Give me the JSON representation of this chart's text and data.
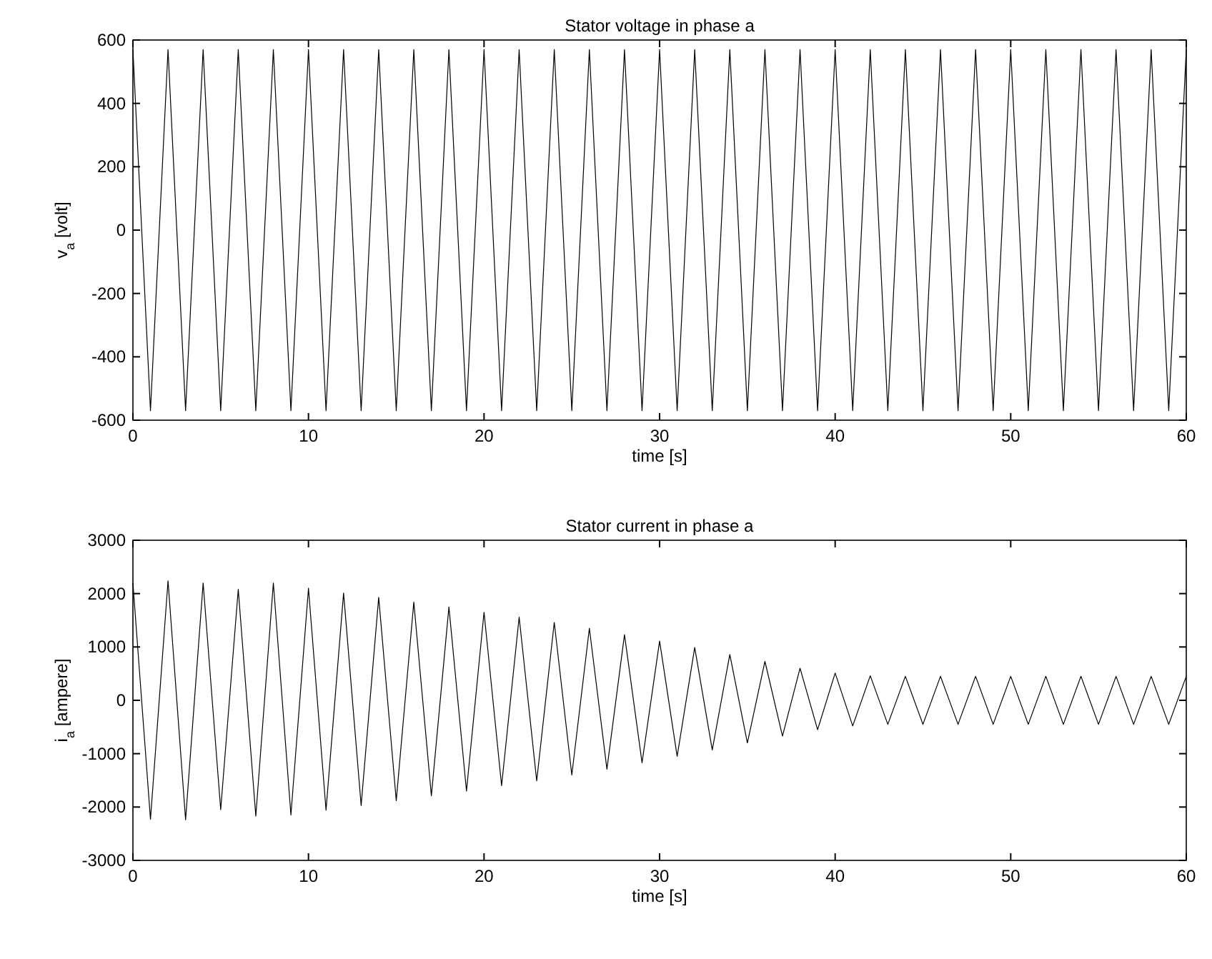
{
  "chart_data": [
    {
      "type": "line",
      "title": "Stator voltage in phase a",
      "xlabel": "time [s]",
      "ylabel": "v$_{a}$ [volt]",
      "xlim": [
        0,
        60
      ],
      "xticks": [
        0,
        10,
        20,
        30,
        40,
        50,
        60
      ],
      "ylim": [
        -600,
        600
      ],
      "yticks": [
        -600,
        -400,
        -200,
        0,
        200,
        400,
        600
      ],
      "series": [
        {
          "color": "#000000",
          "x": [
            0,
            1,
            2,
            3,
            4,
            5,
            6,
            7,
            8,
            9,
            10,
            11,
            12,
            13,
            14,
            15,
            16,
            17,
            18,
            19,
            20,
            21,
            22,
            23,
            24,
            25,
            26,
            27,
            28,
            29,
            30,
            31,
            32,
            33,
            34,
            35,
            36,
            37,
            38,
            39,
            40,
            41,
            42,
            43,
            44,
            45,
            46,
            47,
            48,
            49,
            50,
            51,
            52,
            53,
            54,
            55,
            56,
            57,
            58,
            59,
            60
          ],
          "values": [
            570,
            -570,
            570,
            -570,
            570,
            -570,
            570,
            -570,
            570,
            -570,
            570,
            -570,
            570,
            -570,
            570,
            -570,
            570,
            -570,
            570,
            -570,
            570,
            -570,
            570,
            -570,
            570,
            -570,
            570,
            -570,
            570,
            -570,
            570,
            -570,
            570,
            -570,
            570,
            -570,
            570,
            -570,
            570,
            -570,
            570,
            -570,
            570,
            -570,
            570,
            -570,
            570,
            -570,
            570,
            -570,
            570,
            -570,
            570,
            -570,
            570,
            -570,
            570,
            -570,
            570,
            -570,
            570
          ]
        }
      ]
    },
    {
      "type": "line",
      "title": "Stator current in phase a",
      "xlabel": "time [s]",
      "ylabel": "i$_{a}$ [ampere]",
      "xlim": [
        0,
        60
      ],
      "xticks": [
        0,
        10,
        20,
        30,
        40,
        50,
        60
      ],
      "ylim": [
        -3000,
        3000
      ],
      "yticks": [
        -3000,
        -2000,
        -1000,
        0,
        1000,
        2000,
        3000
      ],
      "series": [
        {
          "color": "#000000",
          "x": [
            0,
            1,
            2,
            3,
            4,
            5,
            6,
            7,
            8,
            9,
            10,
            11,
            12,
            13,
            14,
            15,
            16,
            17,
            18,
            19,
            20,
            21,
            22,
            23,
            24,
            25,
            26,
            27,
            28,
            29,
            30,
            31,
            32,
            33,
            34,
            35,
            36,
            37,
            38,
            39,
            40,
            41,
            42,
            43,
            44,
            45,
            46,
            47,
            48,
            49,
            50,
            51,
            52,
            53,
            54,
            55,
            56,
            57,
            58,
            59,
            60
          ],
          "values": [
            2200,
            -2230,
            2240,
            -2240,
            2200,
            -2050,
            2080,
            -2170,
            2200,
            -2150,
            2100,
            -2060,
            2010,
            -1970,
            1930,
            -1880,
            1840,
            -1790,
            1750,
            -1700,
            1650,
            -1600,
            1560,
            -1510,
            1460,
            -1400,
            1350,
            -1290,
            1230,
            -1170,
            1110,
            -1050,
            990,
            -930,
            860,
            -800,
            730,
            -670,
            600,
            -550,
            510,
            -480,
            460,
            -450,
            450,
            -450,
            450,
            -450,
            450,
            -450,
            450,
            -450,
            450,
            -450,
            450,
            -450,
            450,
            -450,
            450,
            -450,
            450
          ]
        }
      ]
    }
  ]
}
